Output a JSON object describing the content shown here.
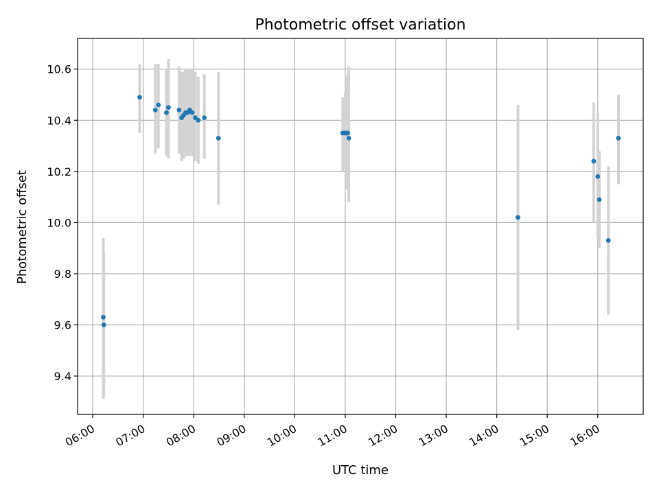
{
  "chart_data": {
    "type": "scatter",
    "title": "Photometric offset variation",
    "xlabel": "UTC time",
    "ylabel": "Photometric offset",
    "x_unit": "hours UTC",
    "xlim": [
      5.7,
      16.9
    ],
    "ylim": [
      9.25,
      10.72
    ],
    "grid": true,
    "x_ticks": [
      {
        "value": 6,
        "label": "06:00"
      },
      {
        "value": 7,
        "label": "07:00"
      },
      {
        "value": 8,
        "label": "08:00"
      },
      {
        "value": 9,
        "label": "09:00"
      },
      {
        "value": 10,
        "label": "10:00"
      },
      {
        "value": 11,
        "label": "11:00"
      },
      {
        "value": 12,
        "label": "12:00"
      },
      {
        "value": 13,
        "label": "13:00"
      },
      {
        "value": 14,
        "label": "14:00"
      },
      {
        "value": 15,
        "label": "15:00"
      },
      {
        "value": 16,
        "label": "16:00"
      }
    ],
    "y_ticks": [
      {
        "value": 9.4,
        "label": "9.4"
      },
      {
        "value": 9.6,
        "label": "9.6"
      },
      {
        "value": 9.8,
        "label": "9.8"
      },
      {
        "value": 10.0,
        "label": "10.0"
      },
      {
        "value": 10.2,
        "label": "10.2"
      },
      {
        "value": 10.4,
        "label": "10.4"
      },
      {
        "value": 10.6,
        "label": "10.6"
      }
    ],
    "colors": {
      "point": "#1f77b4",
      "errorbar": "#d3d3d3",
      "grid": "#b0b0b0"
    },
    "points": [
      {
        "x": 6.21,
        "y": 9.63,
        "low": 9.31,
        "high": 9.94
      },
      {
        "x": 6.22,
        "y": 9.6,
        "low": 9.32,
        "high": 9.88
      },
      {
        "x": 6.93,
        "y": 10.49,
        "low": 10.35,
        "high": 10.62
      },
      {
        "x": 7.24,
        "y": 10.44,
        "low": 10.27,
        "high": 10.62
      },
      {
        "x": 7.3,
        "y": 10.46,
        "low": 10.29,
        "high": 10.62
      },
      {
        "x": 7.46,
        "y": 10.43,
        "low": 10.26,
        "high": 10.6
      },
      {
        "x": 7.5,
        "y": 10.45,
        "low": 10.25,
        "high": 10.64
      },
      {
        "x": 7.71,
        "y": 10.44,
        "low": 10.27,
        "high": 10.61
      },
      {
        "x": 7.76,
        "y": 10.41,
        "low": 10.24,
        "high": 10.59
      },
      {
        "x": 7.8,
        "y": 10.42,
        "low": 10.25,
        "high": 10.59
      },
      {
        "x": 7.84,
        "y": 10.43,
        "low": 10.26,
        "high": 10.6
      },
      {
        "x": 7.88,
        "y": 10.43,
        "low": 10.26,
        "high": 10.6
      },
      {
        "x": 7.92,
        "y": 10.44,
        "low": 10.26,
        "high": 10.6
      },
      {
        "x": 7.97,
        "y": 10.43,
        "low": 10.26,
        "high": 10.6
      },
      {
        "x": 8.03,
        "y": 10.41,
        "low": 10.24,
        "high": 10.59
      },
      {
        "x": 8.09,
        "y": 10.4,
        "low": 10.23,
        "high": 10.57
      },
      {
        "x": 8.21,
        "y": 10.41,
        "low": 10.25,
        "high": 10.58
      },
      {
        "x": 8.49,
        "y": 10.33,
        "low": 10.07,
        "high": 10.59
      },
      {
        "x": 10.95,
        "y": 10.35,
        "low": 10.2,
        "high": 10.49
      },
      {
        "x": 11.0,
        "y": 10.35,
        "low": 10.21,
        "high": 10.51
      },
      {
        "x": 11.03,
        "y": 10.35,
        "low": 10.13,
        "high": 10.57
      },
      {
        "x": 11.05,
        "y": 10.35,
        "low": 10.13,
        "high": 10.58
      },
      {
        "x": 11.07,
        "y": 10.33,
        "low": 10.08,
        "high": 10.61
      },
      {
        "x": 14.42,
        "y": 10.02,
        "low": 9.58,
        "high": 10.46
      },
      {
        "x": 15.92,
        "y": 10.24,
        "low": 10.0,
        "high": 10.47
      },
      {
        "x": 16.0,
        "y": 10.18,
        "low": 9.94,
        "high": 10.43
      },
      {
        "x": 16.03,
        "y": 10.09,
        "low": 9.9,
        "high": 10.28
      },
      {
        "x": 16.21,
        "y": 9.93,
        "low": 9.64,
        "high": 10.22
      },
      {
        "x": 16.41,
        "y": 10.33,
        "low": 10.15,
        "high": 10.5
      }
    ]
  }
}
